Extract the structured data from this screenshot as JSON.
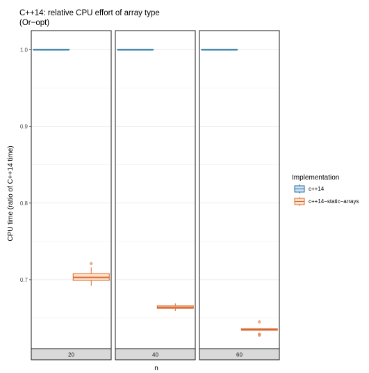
{
  "chart_data": {
    "type": "boxplot",
    "title": "C++14: relative CPU effort of array type",
    "subtitle": "(Or−opt)",
    "xlabel": "n",
    "ylabel": "CPU time (ratio of C++14 time)",
    "ylim": [
      0.61,
      1.025
    ],
    "y_ticks": [
      0.7,
      0.8,
      0.9,
      1.0
    ],
    "y_tick_labels": [
      "0.7",
      "0.8",
      "0.9",
      "1.0"
    ],
    "facets": [
      "20",
      "40",
      "60"
    ],
    "grid": true,
    "legend": {
      "title": "Implementation",
      "position": "right",
      "entries": [
        "c++14",
        "c++14−static−arrays"
      ]
    },
    "series": [
      {
        "name": "c++14",
        "color": "#1f6f99",
        "fill": "#cfe2f3",
        "boxes": [
          {
            "facet": "20",
            "q1": 1.0,
            "median": 1.0,
            "q3": 1.0,
            "whisker_low": 1.0,
            "whisker_high": 1.0,
            "outliers": []
          },
          {
            "facet": "40",
            "q1": 1.0,
            "median": 1.0,
            "q3": 1.0,
            "whisker_low": 1.0,
            "whisker_high": 1.0,
            "outliers": []
          },
          {
            "facet": "60",
            "q1": 1.0,
            "median": 1.0,
            "q3": 1.0,
            "whisker_low": 1.0,
            "whisker_high": 1.0,
            "outliers": []
          }
        ]
      },
      {
        "name": "c++14−static−arrays",
        "color": "#d9692f",
        "fill": "#fde0c9",
        "boxes": [
          {
            "facet": "20",
            "q1": 0.699,
            "median": 0.703,
            "q3": 0.708,
            "whisker_low": 0.692,
            "whisker_high": 0.716,
            "outliers": [
              0.721
            ]
          },
          {
            "facet": "40",
            "q1": 0.6625,
            "median": 0.664,
            "q3": 0.666,
            "whisker_low": 0.659,
            "whisker_high": 0.669,
            "outliers": []
          },
          {
            "facet": "60",
            "q1": 0.634,
            "median": 0.635,
            "q3": 0.636,
            "whisker_low": 0.6335,
            "whisker_high": 0.6365,
            "outliers": [
              0.645,
              0.629,
              0.6275
            ]
          }
        ]
      }
    ]
  }
}
